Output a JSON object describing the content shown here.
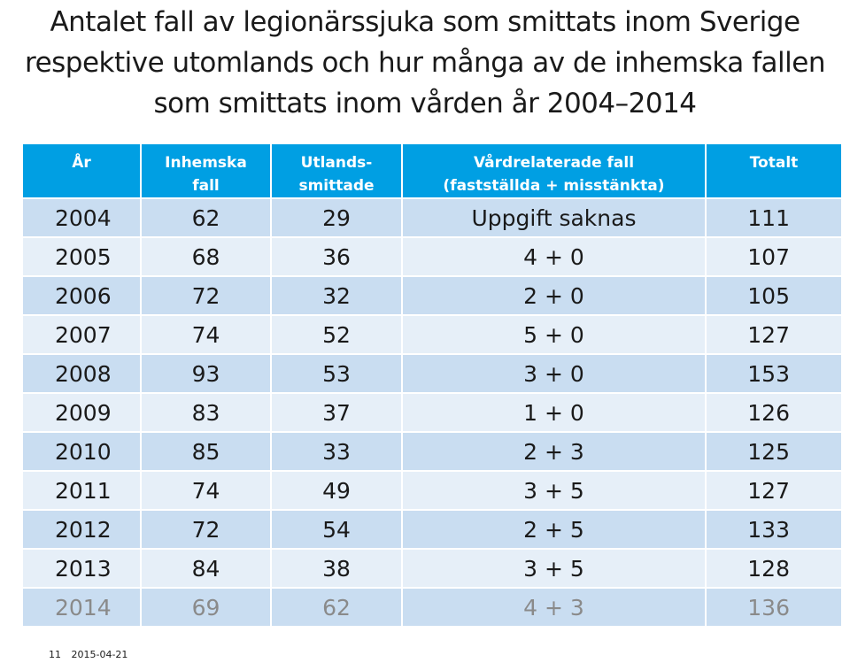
{
  "title": {
    "line1": "Antalet fall av legionärssjuka som smittats inom Sverige",
    "line2": "respektive utomlands och hur många av de inhemska fallen",
    "line3": "som smittats inom vården år 2004–2014"
  },
  "table": {
    "headers": {
      "year": "År",
      "domestic_1": "Inhemska",
      "domestic_2": "fall",
      "abroad_1": "Utlands-",
      "abroad_2": "smittade",
      "care_1": "Vårdrelaterade fall",
      "care_2": "(fastställda + misstänkta)",
      "total": "Totalt"
    },
    "rows": [
      {
        "year": "2004",
        "domestic": "62",
        "abroad": "29",
        "care": "Uppgift saknas",
        "total": "111"
      },
      {
        "year": "2005",
        "domestic": "68",
        "abroad": "36",
        "care": "4 + 0",
        "total": "107"
      },
      {
        "year": "2006",
        "domestic": "72",
        "abroad": "32",
        "care": "2 + 0",
        "total": "105"
      },
      {
        "year": "2007",
        "domestic": "74",
        "abroad": "52",
        "care": "5 + 0",
        "total": "127"
      },
      {
        "year": "2008",
        "domestic": "93",
        "abroad": "53",
        "care": "3 + 0",
        "total": "153"
      },
      {
        "year": "2009",
        "domestic": "83",
        "abroad": "37",
        "care": "1 + 0",
        "total": "126"
      },
      {
        "year": "2010",
        "domestic": "85",
        "abroad": "33",
        "care": "2 + 3",
        "total": "125"
      },
      {
        "year": "2011",
        "domestic": "74",
        "abroad": "49",
        "care": "3 + 5",
        "total": "127"
      },
      {
        "year": "2012",
        "domestic": "72",
        "abroad": "54",
        "care": "2 + 5",
        "total": "133"
      },
      {
        "year": "2013",
        "domestic": "84",
        "abroad": "38",
        "care": "3 + 5",
        "total": "128"
      },
      {
        "year": "2014",
        "domestic": "69",
        "abroad": "62",
        "care": "4 + 3",
        "total": "136"
      }
    ]
  },
  "footer": {
    "slide_number": "11",
    "date": "2015-04-21"
  },
  "colors": {
    "header_bg": "#009fe3",
    "row_dark": "#c9ddf1",
    "row_light": "#e6eff8",
    "faded_text": "#8a8a8a"
  }
}
